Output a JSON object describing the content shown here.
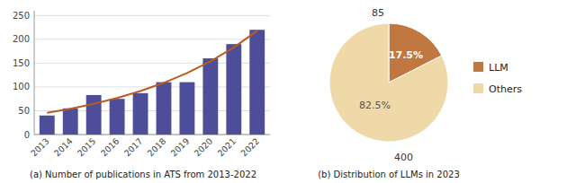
{
  "chart_data": [
    {
      "type": "bar",
      "title": "(a) Number of publications in ATS from 2013-2022",
      "categories": [
        "2013",
        "2014",
        "2015",
        "2016",
        "2017",
        "2018",
        "2019",
        "2020",
        "2021",
        "2022"
      ],
      "series": [
        {
          "type": "bar",
          "color": "#4d4d99",
          "values": [
            40,
            55,
            83,
            75,
            87,
            110,
            110,
            160,
            190,
            220
          ]
        },
        {
          "type": "line",
          "color": "#b85c20",
          "values": [
            45.6,
            54.2,
            64.5,
            76.8,
            91.3,
            108.7,
            129.3,
            153.9,
            183.1,
            217.8
          ]
        }
      ],
      "ylim": [
        0,
        260
      ],
      "yticks": [
        0,
        50,
        100,
        150,
        200,
        250
      ],
      "grid": true
    },
    {
      "type": "pie",
      "title": "(b) Distribution of LLMs in 2023",
      "categories": [
        "LLM",
        "Others"
      ],
      "values": [
        17.5,
        82.5
      ],
      "value_labels": [
        "17.5%",
        "82.5%"
      ],
      "colors": [
        "#c07840",
        "#f0d9a8"
      ],
      "data_labels": true,
      "legend": "right",
      "annotations": [
        "85",
        "400"
      ]
    }
  ]
}
